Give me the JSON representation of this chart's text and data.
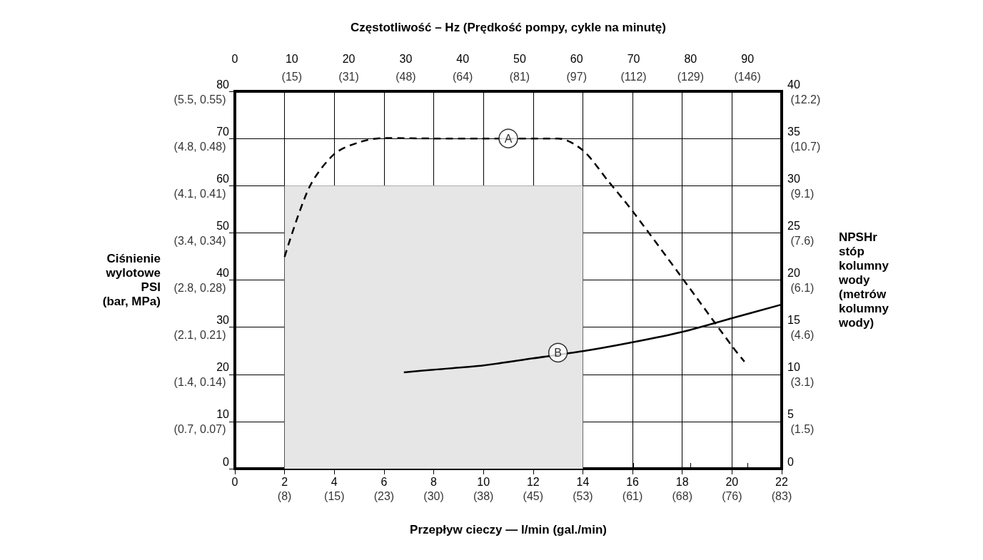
{
  "chart_data": {
    "type": "line",
    "xlabel": "Przepływ cieczy — l/min (gal./min)",
    "x2label": "Częstotliwość – Hz (Prędkość pompy, cykle na minutę)",
    "ylabel": "Ciśnienie\nwylotowe\nPSI\n(bar, MPa)",
    "y2label": "NPSHr\nstóp\nkolumny\nwody\n(metrów\nkolumny\nwody)",
    "xlim": [
      0,
      22
    ],
    "xticks": [
      0,
      2,
      4,
      6,
      8,
      10,
      12,
      14,
      16,
      18,
      20,
      22
    ],
    "x2lim": [
      0,
      96
    ],
    "x2ticks": [
      0,
      10,
      20,
      30,
      40,
      50,
      60,
      70,
      80,
      90
    ],
    "ylim": [
      0,
      80
    ],
    "yticks": [
      0,
      10,
      20,
      30,
      40,
      50,
      60,
      70,
      80
    ],
    "y2lim": [
      0,
      40
    ],
    "y2ticks": [
      0,
      5,
      10,
      15,
      20,
      25,
      30,
      35,
      40
    ],
    "grid": true,
    "marker": "none",
    "series": [
      {
        "type": "area",
        "color": "#e6e6e6",
        "x": [
          2,
          14
        ],
        "values": [
          60,
          60
        ]
      },
      {
        "color": "#000000",
        "line_style": "dashed",
        "x": [
          2,
          3,
          4,
          5,
          6,
          8,
          10,
          13,
          14,
          15,
          16,
          18,
          20,
          20.5
        ],
        "values": [
          44.9,
          59.7,
          66.7,
          69.2,
          70.1,
          70,
          70,
          70,
          67.5,
          61.1,
          54.6,
          40.4,
          26,
          22.7
        ]
      },
      {
        "color": "#000000",
        "line_style": "solid",
        "axis": "y2",
        "x": [
          6.8,
          8,
          10,
          12,
          14,
          16,
          18,
          20,
          22
        ],
        "values": [
          10.2,
          10.5,
          10.95,
          11.7,
          12.45,
          13.4,
          14.5,
          15.95,
          17.4
        ]
      }
    ],
    "annotations": [
      {
        "text": "A",
        "x": 11,
        "y": 70
      },
      {
        "text": "B",
        "x": 13,
        "y": 24.6
      },
      "(8)",
      "(15)",
      "(23)",
      "(30)",
      "(38)",
      "(45)",
      "(53)",
      "(61)",
      "(68)",
      "(76)",
      "(83)",
      "(15)",
      "(31)",
      "(48)",
      "(64)",
      "(81)",
      "(97)",
      "(112)",
      "(129)",
      "(146)",
      "(0.7, 0.07)",
      "(1.4, 0.14)",
      "(2.1, 0.21)",
      "(2.8, 0.28)",
      "(3.4, 0.34)",
      "(4.1, 0.41)",
      "(4.8, 0.48)",
      "(5.5, 0.55)",
      "(1.5)",
      "(3.1)",
      "(4.6)",
      "(6.1)",
      "(7.6)",
      "(9.1)",
      "(10.7)",
      "(12.2)"
    ]
  }
}
